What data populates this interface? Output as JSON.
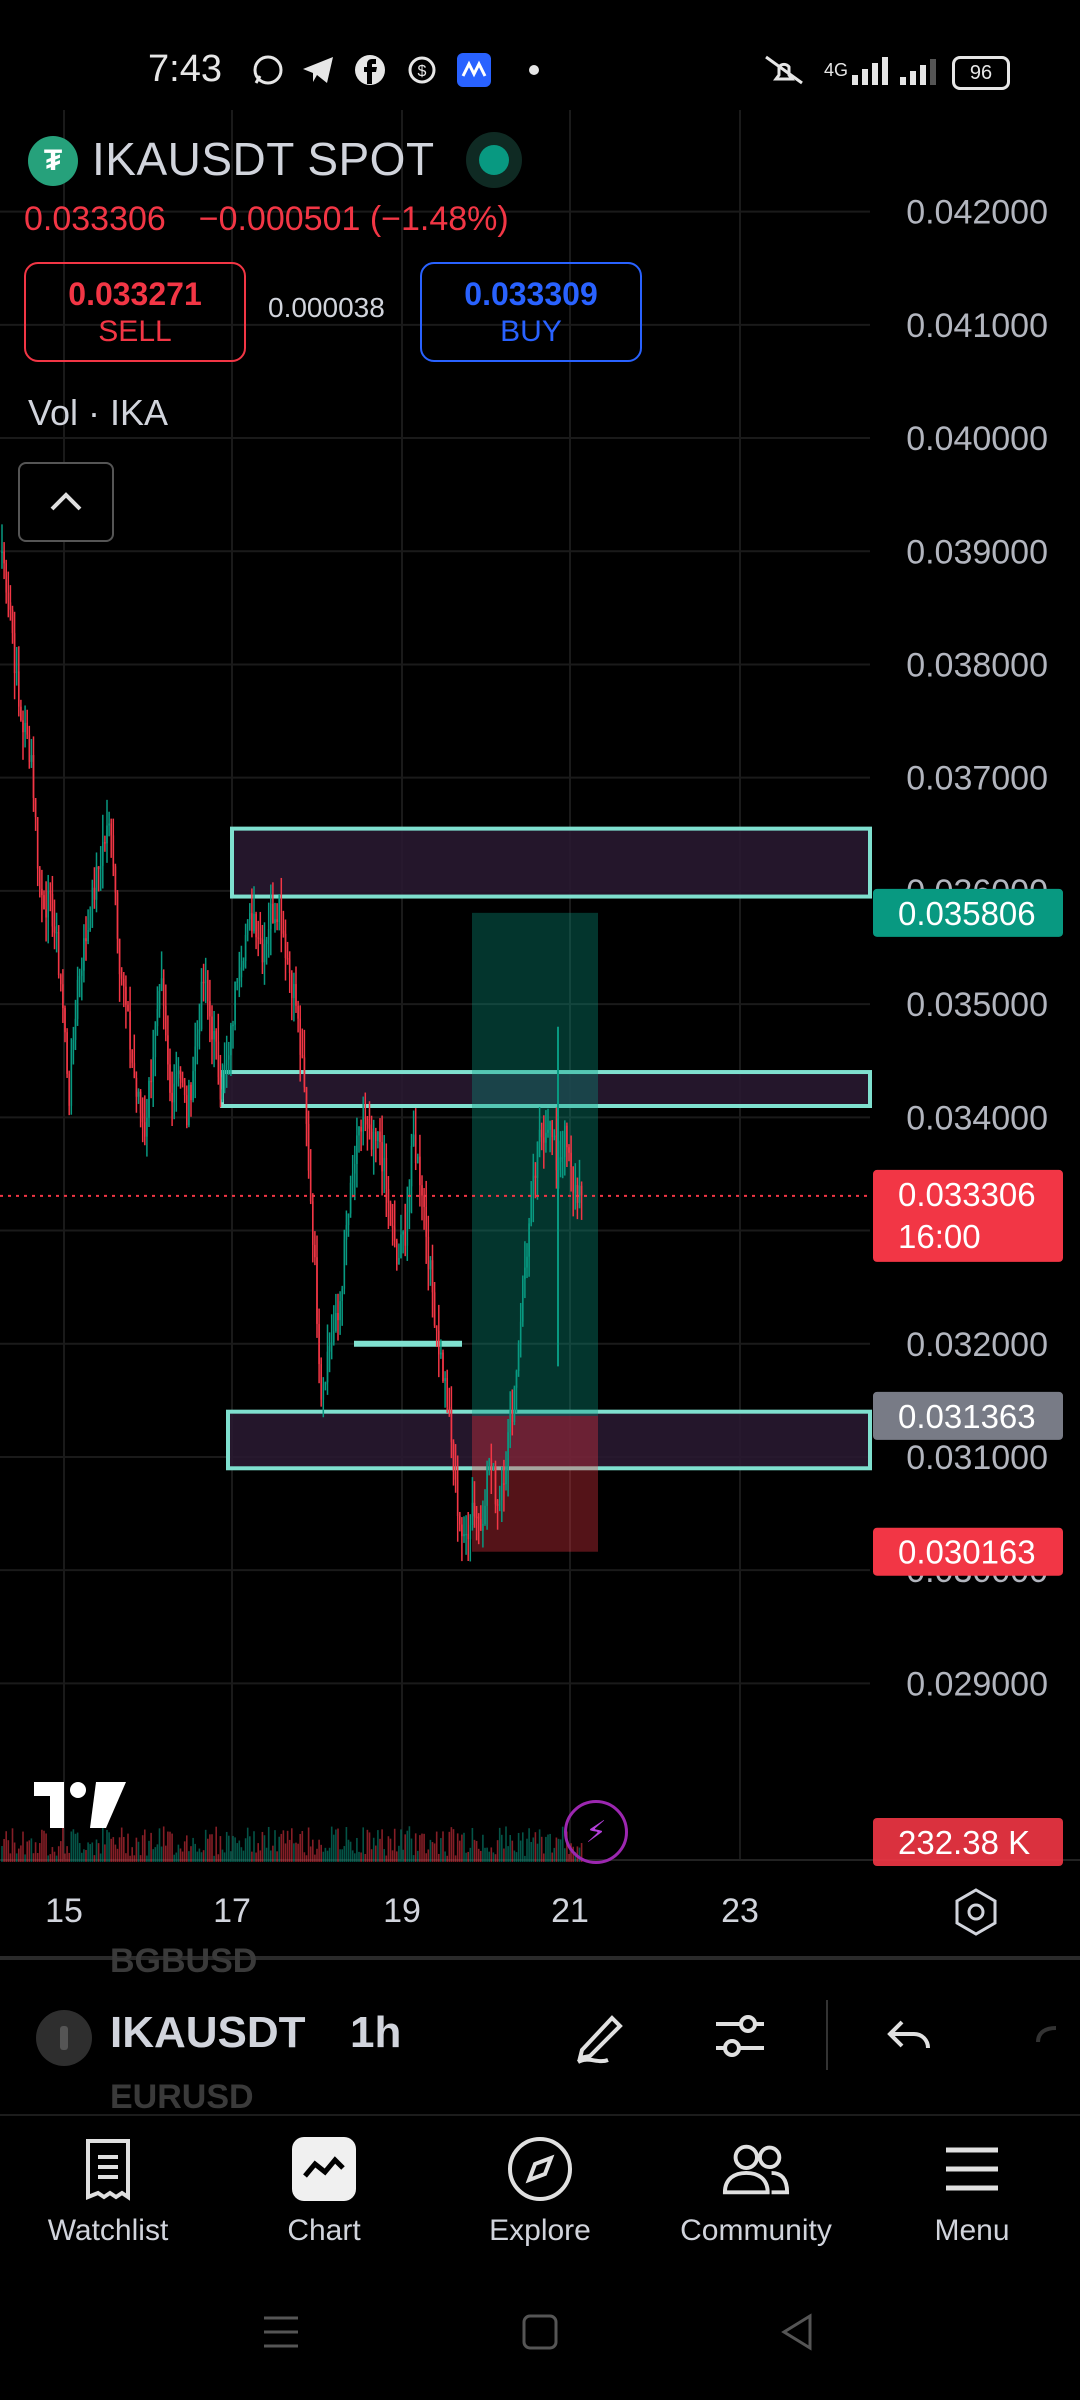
{
  "status_bar": {
    "time": "7:43",
    "battery": "96",
    "network": "4G",
    "icons": [
      "whatsapp-icon",
      "telegram-icon",
      "facebook-icon",
      "money-icon",
      "app-icon",
      "dot-icon",
      "mute-icon",
      "signal-icon",
      "signal-icon-2"
    ]
  },
  "header": {
    "symbol_title": "IKAUSDT SPOT",
    "last_price": "0.033306",
    "change": "−0.000501 (−1.48%)",
    "sell_price": "0.033271",
    "sell_label": "SELL",
    "spread": "0.000038",
    "buy_price": "0.033309",
    "buy_label": "BUY",
    "volume_label": "Vol · IKA"
  },
  "colors": {
    "up": "#089981",
    "down": "#f23645",
    "zone_border": "#7fe0cf",
    "zone_fill": "#2a1a33",
    "buy_blue": "#2962ff"
  },
  "chart_data": {
    "type": "candlestick",
    "symbol": "IKAUSDT",
    "interval": "1h",
    "y_ticks": [
      "0.042000",
      "0.041000",
      "0.040000",
      "0.039000",
      "0.038000",
      "0.037000",
      "0.036000",
      "0.035000",
      "0.034000",
      "0.033000",
      "0.032000",
      "0.031000",
      "0.030000",
      "0.029000"
    ],
    "ylim": [
      0.0285,
      0.0425
    ],
    "x_ticks": [
      "15",
      "17",
      "19",
      "21",
      "23"
    ],
    "price_tags": [
      {
        "value": "0.035806",
        "color": "#089981"
      },
      {
        "value": "0.033306",
        "sub": "16:00",
        "color": "#f23645"
      },
      {
        "value": "0.031363",
        "color": "#787b86"
      },
      {
        "value": "0.030163",
        "color": "#f23645"
      }
    ],
    "volume_tag": "232.38 K",
    "zones": [
      {
        "low": 0.03595,
        "high": 0.03655
      },
      {
        "low": 0.0341,
        "high": 0.0344
      },
      {
        "low": 0.0309,
        "high": 0.0314
      }
    ],
    "position": {
      "target": 0.035806,
      "entry": 0.031363,
      "stop": 0.030163
    },
    "path": [
      [
        0,
        0.039
      ],
      [
        4,
        0.0385
      ],
      [
        8,
        0.0376
      ],
      [
        14,
        0.0372
      ],
      [
        18,
        0.036
      ],
      [
        24,
        0.0358
      ],
      [
        28,
        0.0352
      ],
      [
        32,
        0.0342
      ],
      [
        36,
        0.0352
      ],
      [
        40,
        0.0356
      ],
      [
        44,
        0.036
      ],
      [
        48,
        0.0364
      ],
      [
        52,
        0.0366
      ],
      [
        56,
        0.0354
      ],
      [
        60,
        0.0348
      ],
      [
        64,
        0.0342
      ],
      [
        68,
        0.0339
      ],
      [
        72,
        0.0346
      ],
      [
        76,
        0.0351
      ],
      [
        80,
        0.0342
      ],
      [
        84,
        0.0345
      ],
      [
        88,
        0.034
      ],
      [
        92,
        0.0346
      ],
      [
        96,
        0.0352
      ],
      [
        100,
        0.0348
      ],
      [
        104,
        0.0343
      ],
      [
        108,
        0.0345
      ],
      [
        112,
        0.0353
      ],
      [
        116,
        0.0356
      ],
      [
        120,
        0.0358
      ],
      [
        124,
        0.0355
      ],
      [
        128,
        0.0358
      ],
      [
        132,
        0.0359
      ],
      [
        136,
        0.0354
      ],
      [
        140,
        0.035
      ],
      [
        144,
        0.0342
      ],
      [
        148,
        0.033
      ],
      [
        152,
        0.0316
      ],
      [
        156,
        0.032
      ],
      [
        160,
        0.0322
      ],
      [
        164,
        0.033
      ],
      [
        168,
        0.0336
      ],
      [
        172,
        0.034
      ],
      [
        176,
        0.0337
      ],
      [
        180,
        0.0338
      ],
      [
        184,
        0.0332
      ],
      [
        188,
        0.0327
      ],
      [
        192,
        0.033
      ],
      [
        196,
        0.0338
      ],
      [
        200,
        0.0334
      ],
      [
        204,
        0.0326
      ],
      [
        208,
        0.032
      ],
      [
        212,
        0.0315
      ],
      [
        216,
        0.0307
      ],
      [
        220,
        0.0302
      ],
      [
        224,
        0.0306
      ],
      [
        228,
        0.0304
      ],
      [
        232,
        0.031
      ],
      [
        236,
        0.0306
      ],
      [
        240,
        0.031
      ],
      [
        244,
        0.0316
      ],
      [
        248,
        0.0325
      ],
      [
        252,
        0.0332
      ],
      [
        256,
        0.0338
      ],
      [
        260,
        0.034
      ],
      [
        264,
        0.0336
      ],
      [
        268,
        0.0338
      ],
      [
        272,
        0.0334
      ],
      [
        276,
        0.03331
      ]
    ]
  },
  "toolbar": {
    "ghost_above": "BGBUSD",
    "ghost_below": "EURUSD",
    "symbol": "IKAUSDT",
    "interval": "1h"
  },
  "nav": [
    {
      "label": "Watchlist",
      "icon": "watchlist-icon"
    },
    {
      "label": "Chart",
      "icon": "chart-icon"
    },
    {
      "label": "Explore",
      "icon": "compass-icon"
    },
    {
      "label": "Community",
      "icon": "community-icon"
    },
    {
      "label": "Menu",
      "icon": "hamburger-icon"
    }
  ]
}
